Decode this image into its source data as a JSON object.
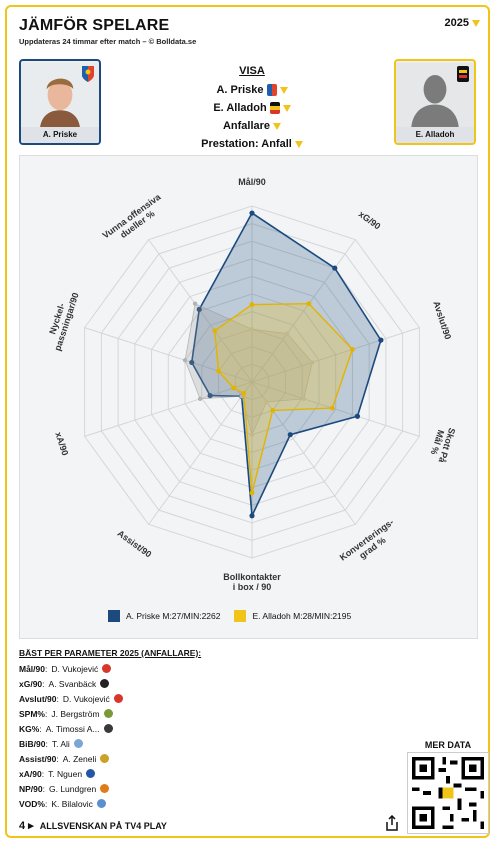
{
  "header": {
    "title": "JÄMFÖR SPELARE",
    "subtitle": "Uppdateras 24 timmar efter match – © Bolldata.se",
    "season": "2025"
  },
  "players": {
    "left_name": "A. Priske",
    "right_name": "E. Alladoh"
  },
  "visa": {
    "header": "VISA",
    "player1": "A. Priske",
    "player2": "E. Alladoh",
    "position": "Anfallare",
    "prestation": "Prestation: Anfall"
  },
  "colors": {
    "accent": "#f0c419",
    "player1": "#1c4a7d",
    "player2": "#f0c419",
    "gray_series": "#9a9a9a"
  },
  "chart_data": {
    "type": "radar",
    "axes": [
      "Mål/90",
      "xG/90",
      "Avslut/90",
      "Skott På Mål %",
      "Konverterings-grad %",
      "Bollkontakter i box / 90",
      "Assist/90",
      "xA/90",
      "Nyckel-passningar/90",
      "Vunna offensiva dueller %"
    ],
    "axis_label_lines": [
      [
        "Mål/90"
      ],
      [
        "xG/90"
      ],
      [
        "Avslut/90"
      ],
      [
        "Skott På",
        "Mål %"
      ],
      [
        "Konverterings-",
        "grad %"
      ],
      [
        "Bollkontakter",
        "i box / 90"
      ],
      [
        "Assist/90"
      ],
      [
        "xA/90"
      ],
      [
        "Nyckel-",
        "passningar/90"
      ],
      [
        "Vunna offensiva",
        "dueller %"
      ]
    ],
    "rmax": 1,
    "grid_levels": 10,
    "series": [
      {
        "name": "A. Priske M:27/MIN:2262",
        "values": [
          0.96,
          0.8,
          0.77,
          0.63,
          0.37,
          0.76,
          0.1,
          0.25,
          0.36,
          0.51
        ]
      },
      {
        "name": "E. Alladoh M:28/MIN:2195",
        "values": [
          0.44,
          0.55,
          0.6,
          0.48,
          0.2,
          0.63,
          0.08,
          0.11,
          0.2,
          0.36
        ]
      },
      {
        "values": [
          0.3,
          0.34,
          0.36,
          0.31,
          0.14,
          0.3,
          0.1,
          0.31,
          0.4,
          0.55
        ]
      }
    ],
    "legend_position": "bottom"
  },
  "best": {
    "header": "BÄST PER PARAMETER 2025 (ANFALLARE):",
    "rows": [
      {
        "key": "Mål/90",
        "player": "D. Vukojević",
        "color": "#d9352b"
      },
      {
        "key": "xG/90",
        "player": "A. Svanbäck",
        "color": "#222222"
      },
      {
        "key": "Avslut/90",
        "player": "D. Vukojević",
        "color": "#d9352b"
      },
      {
        "key": "SPM%",
        "player": "J. Bergström",
        "color": "#7a9a3a"
      },
      {
        "key": "KG%",
        "player": "A. Timossi A...",
        "color": "#3a3a3a"
      },
      {
        "key": "BiB/90",
        "player": "T. Ali",
        "color": "#7aa6d6"
      },
      {
        "key": "Assist/90",
        "player": "A. Zeneli",
        "color": "#c9a227"
      },
      {
        "key": "xA/90",
        "player": "T. Nguen",
        "color": "#2456a6"
      },
      {
        "key": "NP/90",
        "player": "G. Lundgren",
        "color": "#e07b1a"
      },
      {
        "key": "VOD%",
        "player": "K. Bilalovic",
        "color": "#5b8fd0"
      }
    ]
  },
  "more": {
    "label": "MER DATA"
  },
  "footer": {
    "label": "ALLSVENSKAN PÅ TV4 PLAY"
  }
}
